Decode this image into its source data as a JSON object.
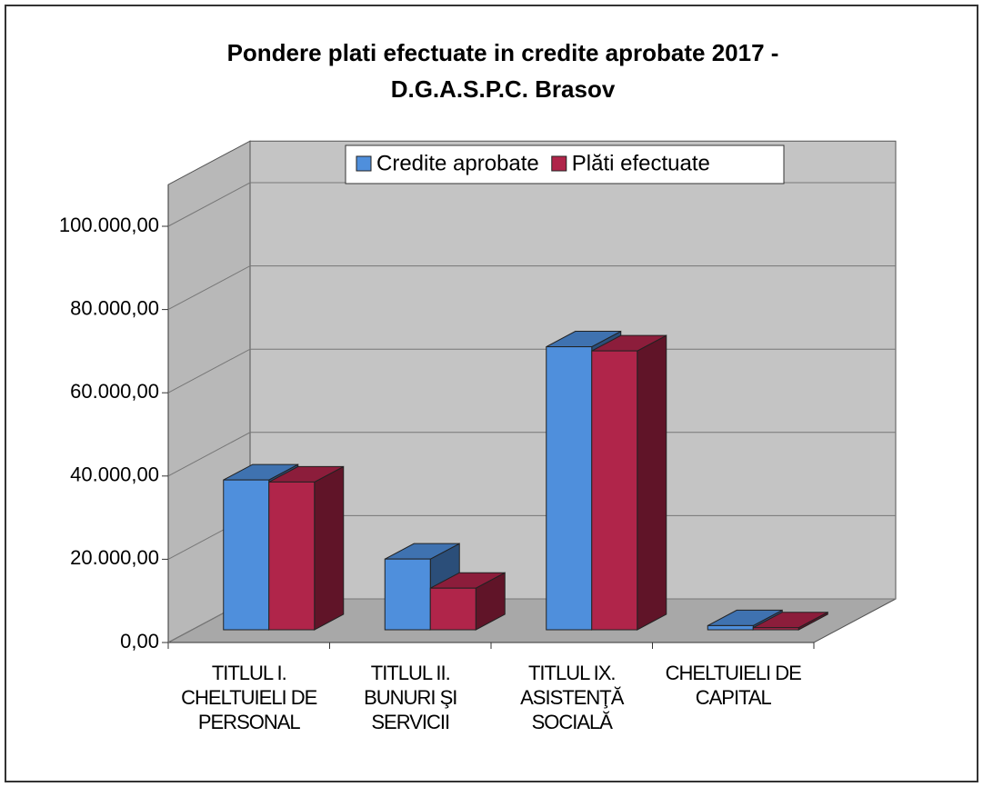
{
  "chart_data": {
    "type": "bar3d",
    "title": "Pondere plati efectuate in credite aprobate 2017 -",
    "subtitle": "D.G.A.S.P.C. Brasov",
    "categories": [
      "TITLUL I. CHELTUIELI DE PERSONAL",
      "TITLUL II. BUNURI ŞI SERVICII",
      "TITLUL IX. ASISTENŢĂ SOCIALĂ",
      "CHELTUIELI DE CAPITAL"
    ],
    "series": [
      {
        "name": "Credite aprobate",
        "color": "#4f8fdc",
        "values": [
          36000,
          17000,
          68000,
          1000
        ]
      },
      {
        "name": "Plăti efectuate",
        "color": "#b0254a",
        "values": [
          35500,
          10000,
          67000,
          500
        ]
      }
    ],
    "ylim": [
      0,
      110000
    ],
    "yticks": [
      {
        "value": 0,
        "label": "0,00"
      },
      {
        "value": 20000,
        "label": "20.000,00"
      },
      {
        "value": 40000,
        "label": "40.000,00"
      },
      {
        "value": 60000,
        "label": "60.000,00"
      },
      {
        "value": 80000,
        "label": "80.000,00"
      },
      {
        "value": 100000,
        "label": "100.000,00"
      }
    ],
    "grid": true,
    "legend": "top"
  }
}
